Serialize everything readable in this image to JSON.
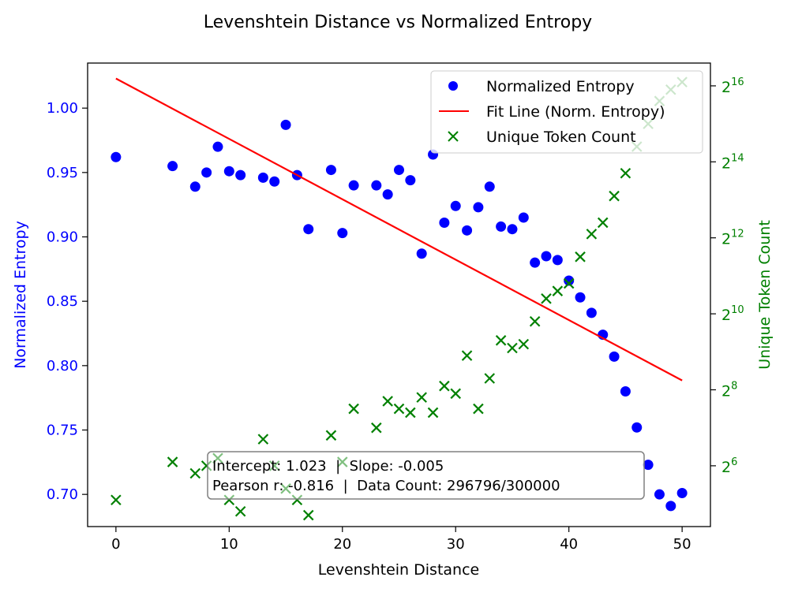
{
  "chart_data": {
    "type": "scatter",
    "title": "Levenshtein Distance vs Normalized Entropy",
    "xlabel": "Levenshtein Distance",
    "ylabel": "Normalized Entropy",
    "y2label": "Unique Token Count",
    "xlim": [
      -2.5,
      52.5
    ],
    "ylim": [
      0.675,
      1.035
    ],
    "y2lim_log2": [
      4.4,
      16.6
    ],
    "x_ticks": [
      0,
      10,
      20,
      30,
      40,
      50
    ],
    "y_ticks": [
      "0.70",
      "0.75",
      "0.80",
      "0.85",
      "0.90",
      "0.95",
      "1.00"
    ],
    "y2_ticks": [
      6,
      8,
      10,
      12,
      14,
      16
    ],
    "y2_tick_base": "2",
    "colors": {
      "entropy": "#0000ff",
      "fit": "#ff0000",
      "tokens": "#008000",
      "left_axis": "#0000ff",
      "right_axis": "#008000"
    },
    "legend": {
      "position": "top-right",
      "entries": [
        {
          "label": "Normalized Entropy",
          "marker": "circle",
          "color": "#0000ff"
        },
        {
          "label": "Fit Line (Norm. Entropy)",
          "marker": "line",
          "color": "#ff0000"
        },
        {
          "label": "Unique Token Count",
          "marker": "x",
          "color": "#008000"
        }
      ]
    },
    "annotation": {
      "line1": "Intercept: 1.023  |  Slope: -0.005",
      "line2": "Pearson r: -0.816  |  Data Count: 296796/300000"
    },
    "fit_line": {
      "intercept": 1.023,
      "slope": -0.00469,
      "x_range": [
        0,
        50
      ]
    },
    "series": [
      {
        "name": "Normalized Entropy",
        "x": [
          0,
          5,
          7,
          8,
          9,
          10,
          11,
          13,
          14,
          15,
          16,
          17,
          19,
          20,
          21,
          23,
          24,
          25,
          26,
          27,
          28,
          29,
          30,
          31,
          32,
          33,
          34,
          35,
          36,
          37,
          38,
          39,
          40,
          41,
          42,
          43,
          44,
          45,
          46,
          47,
          48,
          49,
          50
        ],
        "y": [
          0.962,
          0.955,
          0.939,
          0.95,
          0.97,
          0.951,
          0.948,
          0.946,
          0.943,
          0.987,
          0.948,
          0.906,
          0.952,
          0.903,
          0.94,
          0.94,
          0.933,
          0.952,
          0.944,
          0.887,
          0.964,
          0.911,
          0.924,
          0.905,
          0.923,
          0.939,
          0.908,
          0.906,
          0.915,
          0.88,
          0.885,
          0.882,
          0.866,
          0.853,
          0.841,
          0.824,
          0.807,
          0.78,
          0.752,
          0.723,
          0.7,
          0.691,
          0.701
        ]
      },
      {
        "name": "Unique Token Count",
        "x": [
          0,
          5,
          7,
          8,
          9,
          10,
          11,
          13,
          14,
          15,
          16,
          17,
          19,
          20,
          21,
          23,
          24,
          25,
          26,
          27,
          28,
          29,
          30,
          31,
          32,
          33,
          34,
          35,
          36,
          37,
          38,
          39,
          40,
          41,
          42,
          43,
          44,
          45,
          46,
          47,
          48,
          49,
          50
        ],
        "log2_y": [
          5.1,
          6.1,
          5.8,
          6.0,
          6.2,
          5.1,
          4.8,
          6.7,
          6.0,
          5.4,
          5.1,
          4.7,
          6.8,
          6.1,
          7.5,
          7.0,
          7.7,
          7.5,
          7.4,
          7.8,
          7.4,
          8.1,
          7.9,
          8.9,
          7.5,
          8.3,
          9.3,
          9.1,
          9.2,
          9.8,
          10.4,
          10.6,
          10.8,
          11.5,
          12.1,
          12.4,
          13.1,
          13.7,
          14.4,
          15.0,
          15.6,
          15.9,
          16.1
        ]
      }
    ]
  }
}
